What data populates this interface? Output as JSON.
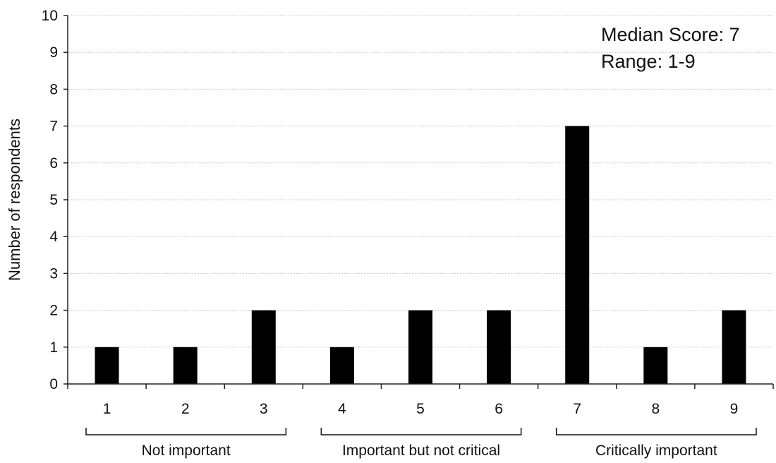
{
  "chart_data": {
    "type": "bar",
    "title": "",
    "xlabel": "",
    "ylabel": "Number of respondents",
    "categories": [
      "1",
      "2",
      "3",
      "4",
      "5",
      "6",
      "7",
      "8",
      "9"
    ],
    "values": [
      1,
      1,
      2,
      1,
      2,
      2,
      7,
      1,
      2
    ],
    "ylim": [
      0,
      10
    ],
    "yticks": [
      "0",
      "1",
      "2",
      "3",
      "4",
      "5",
      "6",
      "7",
      "8",
      "9",
      "10"
    ],
    "grid": true,
    "bar_color": "#000000",
    "grid_color": "#c8c8c8",
    "groups": [
      {
        "label": "Not important",
        "categories": [
          "1",
          "2",
          "3"
        ]
      },
      {
        "label": "Important but not critical",
        "categories": [
          "4",
          "5",
          "6"
        ]
      },
      {
        "label": "Critically important",
        "categories": [
          "7",
          "8",
          "9"
        ]
      }
    ],
    "annotations": [
      "Median Score: 7",
      "Range: 1-9"
    ]
  }
}
